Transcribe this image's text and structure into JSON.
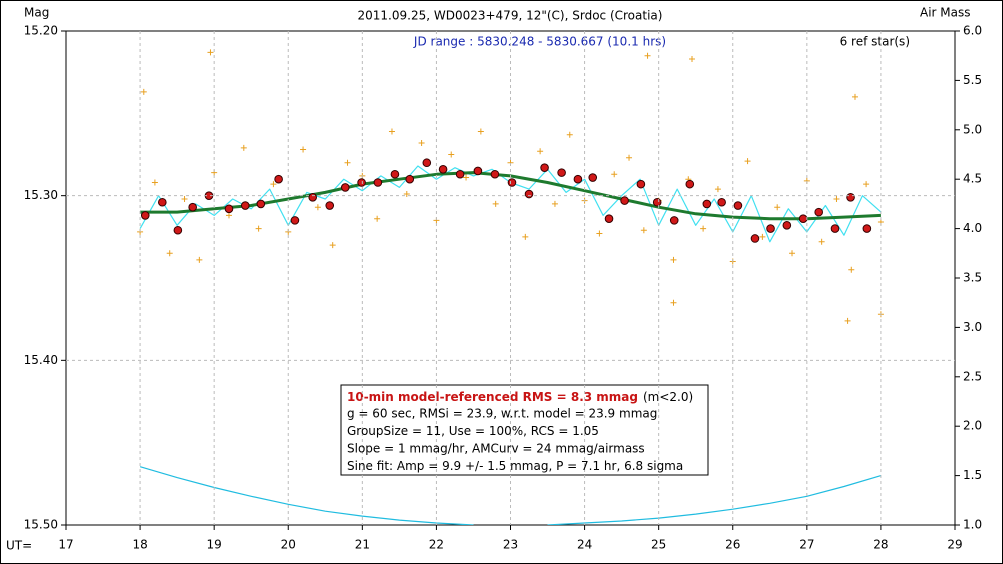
{
  "chart_data": {
    "type": "scatter",
    "title": "2011.09.25, WD0023+479, 12\"(C), Srdoc (Croatia)",
    "y_label": "Mag",
    "y2_label": "Air Mass",
    "x_label": "UT=",
    "annotations": {
      "jd_range": "JD range : 5830.248 - 5830.667 (10.1 hrs)",
      "ref_stars": "6 ref star(s)"
    },
    "stats_box": {
      "headline": "10-min model-referenced RMS = 8.3 mmag",
      "headline_note": "(m<2.0)",
      "lines": [
        "g = 60 sec, RMSi = 23.9, w.r.t. model = 23.9 mmag",
        "GroupSize = 11, Use = 100%, RCS = 1.05",
        "Slope = 1 mmag/hr, AMCurv = 24 mmag/airmass",
        "Sine fit: Amp = 9.9 +/- 1.5 mmag, P = 7.1 hr, 6.8 sigma"
      ]
    },
    "xlim": [
      17,
      29
    ],
    "xticks": [
      17,
      18,
      19,
      20,
      21,
      22,
      23,
      24,
      25,
      26,
      27,
      28,
      29
    ],
    "ylim": [
      15.5,
      15.2
    ],
    "yticks": [
      {
        "value": 15.2,
        "label": "15.20"
      },
      {
        "value": 15.3,
        "label": "15.30"
      },
      {
        "value": 15.4,
        "label": "15.40"
      },
      {
        "value": 15.5,
        "label": "15.50"
      }
    ],
    "y2lim": [
      1,
      6
    ],
    "y2ticks": [
      {
        "value": 1,
        "label": "1.0"
      },
      1.5,
      {
        "value": 2,
        "label": "2.0"
      },
      2.5,
      {
        "value": 3,
        "label": "3.0"
      },
      3.5,
      {
        "value": 4,
        "label": "4.0"
      },
      4.5,
      {
        "value": 5,
        "label": "5.0"
      },
      5.5,
      {
        "value": 6,
        "label": "6.0"
      }
    ],
    "grid": true,
    "series": [
      {
        "marker": "plus",
        "color": "#e8a020",
        "x": [
          18.0,
          18.2,
          18.4,
          18.6,
          18.8,
          19.0,
          19.2,
          19.4,
          19.6,
          19.8,
          20.0,
          20.2,
          20.4,
          20.6,
          20.8,
          21.0,
          21.2,
          21.4,
          21.6,
          21.8,
          22.0,
          22.2,
          22.4,
          22.6,
          22.8,
          23.0,
          23.2,
          23.4,
          23.6,
          23.8,
          24.0,
          24.2,
          24.4,
          24.6,
          24.8,
          25.0,
          25.2,
          25.4,
          25.6,
          25.8,
          26.0,
          26.2,
          26.4,
          26.6,
          26.8,
          27.0,
          27.2,
          27.4,
          27.6,
          27.8,
          28.0,
          18.05,
          18.95,
          24.85,
          25.45,
          27.65,
          27.55,
          28.0,
          25.2
        ],
        "values": [
          15.322,
          15.292,
          15.335,
          15.302,
          15.339,
          15.286,
          15.312,
          15.271,
          15.32,
          15.293,
          15.322,
          15.272,
          15.307,
          15.33,
          15.28,
          15.288,
          15.314,
          15.261,
          15.299,
          15.268,
          15.315,
          15.275,
          15.289,
          15.261,
          15.305,
          15.28,
          15.325,
          15.273,
          15.305,
          15.263,
          15.303,
          15.323,
          15.287,
          15.277,
          15.321,
          15.303,
          15.339,
          15.29,
          15.32,
          15.296,
          15.34,
          15.279,
          15.325,
          15.307,
          15.335,
          15.291,
          15.328,
          15.302,
          15.345,
          15.293,
          15.316,
          15.237,
          15.213,
          15.215,
          15.217,
          15.24,
          15.376,
          15.372,
          15.365
        ]
      },
      {
        "marker": "line",
        "color": "#40e0f0",
        "x": [
          18.0,
          18.25,
          18.5,
          18.75,
          19.0,
          19.25,
          19.5,
          19.75,
          20.0,
          20.25,
          20.5,
          20.75,
          21.0,
          21.25,
          21.5,
          21.75,
          22.0,
          22.25,
          22.5,
          22.75,
          23.0,
          23.25,
          23.5,
          23.75,
          24.0,
          24.25,
          24.5,
          24.75,
          25.0,
          25.25,
          25.5,
          25.75,
          26.0,
          26.25,
          26.5,
          26.75,
          27.0,
          27.25,
          27.5,
          27.75,
          28.0
        ],
        "values": [
          15.32,
          15.3,
          15.318,
          15.305,
          15.312,
          15.302,
          15.308,
          15.296,
          15.318,
          15.298,
          15.302,
          15.29,
          15.297,
          15.288,
          15.295,
          15.282,
          15.29,
          15.283,
          15.288,
          15.284,
          15.292,
          15.296,
          15.284,
          15.298,
          15.29,
          15.312,
          15.3,
          15.29,
          15.318,
          15.296,
          15.318,
          15.302,
          15.322,
          15.3,
          15.328,
          15.308,
          15.322,
          15.306,
          15.324,
          15.3,
          15.31
        ]
      },
      {
        "marker": "line",
        "color": "#1e7a2e",
        "width": 3,
        "x": [
          18,
          18.5,
          19,
          19.5,
          20,
          20.5,
          21,
          21.5,
          22,
          22.5,
          23,
          23.5,
          24,
          24.5,
          25,
          25.5,
          26,
          26.5,
          27,
          27.5,
          28
        ],
        "values": [
          15.31,
          15.31,
          15.308,
          15.306,
          15.302,
          15.298,
          15.293,
          15.29,
          15.287,
          15.286,
          15.288,
          15.292,
          15.297,
          15.302,
          15.307,
          15.311,
          15.313,
          15.314,
          15.314,
          15.313,
          15.312
        ]
      },
      {
        "marker": "circle",
        "color": "#d01818",
        "x": [
          18.07,
          18.3,
          18.51,
          18.71,
          18.93,
          19.2,
          19.42,
          19.63,
          19.87,
          20.09,
          20.33,
          20.56,
          20.77,
          20.99,
          21.21,
          21.44,
          21.64,
          21.87,
          22.09,
          22.32,
          22.56,
          22.79,
          23.02,
          23.25,
          23.46,
          23.69,
          23.91,
          24.11,
          24.33,
          24.54,
          24.76,
          24.98,
          25.21,
          25.42,
          25.65,
          25.85,
          26.07,
          26.3,
          26.51,
          26.73,
          26.95,
          27.16,
          27.38,
          27.59,
          27.81
        ],
        "values": [
          15.312,
          15.304,
          15.321,
          15.307,
          15.3,
          15.308,
          15.306,
          15.305,
          15.29,
          15.315,
          15.301,
          15.306,
          15.295,
          15.292,
          15.292,
          15.287,
          15.29,
          15.28,
          15.284,
          15.287,
          15.285,
          15.287,
          15.292,
          15.299,
          15.283,
          15.286,
          15.29,
          15.289,
          15.314,
          15.303,
          15.293,
          15.304,
          15.315,
          15.293,
          15.305,
          15.304,
          15.306,
          15.326,
          15.32,
          15.318,
          15.314,
          15.31,
          15.32,
          15.301,
          15.32
        ]
      },
      {
        "marker": "line",
        "color": "#20bce0",
        "axis": "y2",
        "x": [
          18,
          18.5,
          19,
          19.5,
          20,
          20.5,
          21,
          21.5,
          22,
          22.5,
          23,
          23.5,
          24,
          24.5,
          25,
          25.5,
          26,
          26.5,
          27,
          27.5,
          28
        ],
        "values": [
          1.59,
          1.48,
          1.38,
          1.29,
          1.21,
          1.14,
          1.09,
          1.05,
          1.02,
          1.0,
          null,
          1.0,
          1.02,
          1.04,
          1.07,
          1.11,
          1.16,
          1.22,
          1.29,
          1.39,
          1.5
        ]
      }
    ]
  }
}
